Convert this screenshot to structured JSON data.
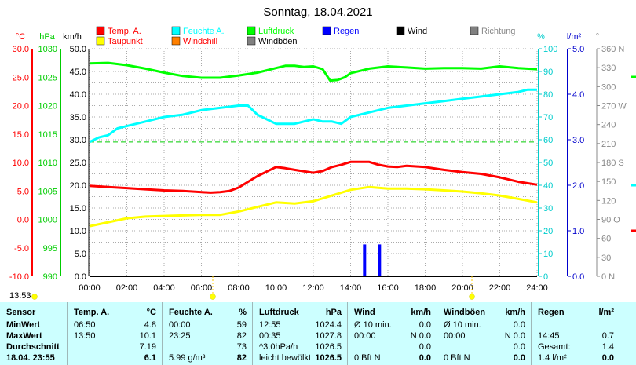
{
  "chart_data": {
    "type": "line",
    "title": "Sonntag, 18.04.2021",
    "x_ticks": [
      "00:00",
      "02:00",
      "04:00",
      "06:00",
      "08:00",
      "10:00",
      "12:00",
      "14:00",
      "16:00",
      "18:00",
      "20:00",
      "22:00",
      "24:00"
    ],
    "x_range_hours": [
      0,
      24
    ],
    "grid": true,
    "axes": {
      "temp": {
        "unit": "°C",
        "color": "#ff0000",
        "range": [
          -10,
          30
        ],
        "ticks": [
          "30.0",
          "25.0",
          "20.0",
          "15.0",
          "10.0",
          "5.0",
          "0.0",
          "-5.0",
          "-10.0"
        ]
      },
      "pressure": {
        "unit": "hPa",
        "color": "#00cc00",
        "range": [
          990,
          1030
        ],
        "ticks": [
          "1030",
          "1025",
          "1020",
          "1015",
          "1010",
          "1005",
          "1000",
          "995",
          "990"
        ]
      },
      "wind": {
        "unit": "km/h",
        "color": "#000000",
        "range": [
          0,
          50
        ],
        "ticks": [
          "50.0",
          "45.0",
          "40.0",
          "35.0",
          "30.0",
          "25.0",
          "20.0",
          "15.0",
          "10.0",
          "5.0",
          "0.0"
        ]
      },
      "humidity": {
        "unit": "%",
        "color": "#00cccc",
        "range": [
          0,
          100
        ],
        "ticks": [
          "100",
          "90",
          "80",
          "70",
          "60",
          "50",
          "40",
          "30",
          "20",
          "10",
          "0"
        ]
      },
      "rain": {
        "unit": "l/m²",
        "color": "#0000cc",
        "range": [
          0,
          5
        ],
        "ticks": [
          "5.0",
          "4.0",
          "3.0",
          "2.0",
          "1.0",
          "0.0"
        ]
      },
      "direction": {
        "unit": "°",
        "color": "#888888",
        "range": [
          0,
          360
        ],
        "ticks": [
          "360 N",
          "330",
          "300",
          "270 W",
          "240",
          "210",
          "180 S",
          "150",
          "120",
          "90 O",
          "60",
          "30",
          "0 N"
        ]
      }
    },
    "legend": [
      {
        "name": "Temp. A.",
        "color": "#ff0000"
      },
      {
        "name": "Feuchte A.",
        "color": "#00ffff"
      },
      {
        "name": "Luftdruck",
        "color": "#00ff00"
      },
      {
        "name": "Regen",
        "color": "#0000ff"
      },
      {
        "name": "Wind",
        "color": "#000000"
      },
      {
        "name": "Richtung",
        "color": "#808080"
      },
      {
        "name": "Taupunkt",
        "color": "#ffff00"
      },
      {
        "name": "Windchill",
        "color": "#ff8000"
      },
      {
        "name": "Windböen",
        "color": "#808080"
      }
    ],
    "series": [
      {
        "name": "Temp. A.",
        "color": "#ff0000",
        "axis": "temp",
        "x": [
          0,
          1,
          2,
          3,
          4,
          5,
          6,
          6.5,
          7,
          7.5,
          8,
          9,
          10,
          10.5,
          11,
          12,
          12.5,
          13,
          13.5,
          14,
          14.5,
          15,
          15.5,
          16,
          16.5,
          17,
          18,
          19,
          20,
          21,
          22,
          23,
          24
        ],
        "y": [
          5.9,
          5.7,
          5.5,
          5.3,
          5.1,
          5.0,
          4.8,
          4.7,
          4.8,
          5.0,
          5.6,
          7.6,
          9.2,
          9.0,
          8.7,
          8.2,
          8.5,
          9.2,
          9.6,
          10.1,
          10.1,
          10.1,
          9.6,
          9.3,
          9.2,
          9.4,
          9.2,
          8.7,
          8.3,
          8.0,
          7.4,
          6.6,
          6.1
        ]
      },
      {
        "name": "Taupunkt",
        "color": "#ffff00",
        "axis": "temp",
        "x": [
          0,
          1,
          2,
          3,
          4,
          5,
          6,
          7,
          8,
          9,
          10,
          11,
          12,
          13,
          14,
          15,
          16,
          17,
          18,
          19,
          20,
          21,
          22,
          23,
          24
        ],
        "y": [
          -1.2,
          -0.5,
          0.2,
          0.5,
          0.6,
          0.7,
          0.8,
          0.8,
          1.4,
          2.2,
          3.0,
          2.8,
          3.2,
          4.2,
          5.2,
          5.7,
          5.4,
          5.4,
          5.3,
          5.1,
          4.9,
          4.6,
          4.2,
          3.6,
          3.0
        ]
      },
      {
        "name": "Feuchte A.",
        "color": "#00ffff",
        "axis": "humidity",
        "x": [
          0,
          0.5,
          1,
          1.5,
          2,
          2.5,
          3,
          4,
          5,
          6,
          7,
          8,
          8.5,
          9,
          9.5,
          10,
          10.5,
          11,
          11.5,
          12,
          12.5,
          13,
          13.5,
          14,
          15,
          16,
          17,
          18,
          19,
          20,
          21,
          22,
          23,
          23.5,
          24
        ],
        "y": [
          59,
          61,
          62,
          65,
          66,
          67,
          68,
          70,
          71,
          73,
          74,
          75,
          75,
          71,
          69,
          67,
          67,
          67,
          68,
          69,
          68,
          68,
          67,
          70,
          72,
          74,
          75,
          76,
          77,
          78,
          79,
          80,
          81,
          82,
          82
        ]
      },
      {
        "name": "Luftdruck",
        "color": "#00ff00",
        "axis": "pressure",
        "x": [
          0,
          1,
          2,
          3,
          4,
          5,
          6,
          7,
          8,
          9,
          10,
          10.5,
          11,
          11.5,
          12,
          12.5,
          12.9,
          13.3,
          13.7,
          14,
          15,
          16,
          17,
          18,
          19,
          20,
          21,
          22,
          23,
          24
        ],
        "y": [
          1027.4,
          1027.5,
          1027.1,
          1026.5,
          1025.8,
          1025.2,
          1024.9,
          1024.9,
          1025.3,
          1025.8,
          1026.6,
          1027.0,
          1027.0,
          1026.8,
          1026.9,
          1026.4,
          1024.4,
          1024.5,
          1025.0,
          1025.7,
          1026.5,
          1026.9,
          1026.7,
          1026.5,
          1026.6,
          1026.6,
          1026.5,
          1026.9,
          1026.6,
          1026.4
        ]
      },
      {
        "name": "Regen",
        "color": "#0000ff",
        "axis": "rain",
        "type": "bar",
        "x": [
          14.75,
          15.55
        ],
        "y": [
          0.7,
          0.7
        ]
      },
      {
        "name": "Wind",
        "color": "#000000",
        "axis": "wind",
        "x": [
          0,
          24
        ],
        "y": [
          0,
          0
        ]
      }
    ],
    "reference_lines": [
      {
        "axis": "humidity",
        "value": 59,
        "color": "#00cc00",
        "style": "dashed"
      }
    ]
  },
  "time_marker": "13:53",
  "table": {
    "columns": [
      {
        "title": "Sensor",
        "unit": ""
      },
      {
        "title": "Temp. A.",
        "unit": "°C"
      },
      {
        "title": "Feuchte A.",
        "unit": "%"
      },
      {
        "title": "Luftdruck",
        "unit": "hPa"
      },
      {
        "title": "Wind",
        "unit": "km/h"
      },
      {
        "title": "Windböen",
        "unit": "km/h"
      },
      {
        "title": "Regen",
        "unit": "l/m²"
      }
    ],
    "rows": [
      {
        "label": "MinWert",
        "cells": [
          [
            "06:50",
            "4.8"
          ],
          [
            "00:00",
            "59"
          ],
          [
            "12:55",
            "1024.4"
          ],
          [
            "Ø 10 min.",
            "0.0"
          ],
          [
            "Ø 10 min.",
            "0.0"
          ],
          [
            "",
            ""
          ]
        ]
      },
      {
        "label": "MaxWert",
        "cells": [
          [
            "13:50",
            "10.1"
          ],
          [
            "23:25",
            "82"
          ],
          [
            "00:35",
            "1027.8"
          ],
          [
            "00:00",
            "N 0.0"
          ],
          [
            "00:00",
            "N 0.0"
          ],
          [
            "14:45",
            "0.7"
          ]
        ]
      },
      {
        "label": "Durchschnitt",
        "cells": [
          [
            "",
            "7.19"
          ],
          [
            "",
            "73"
          ],
          [
            "^3.0hPa/h",
            "1026.5"
          ],
          [
            "",
            "0.0"
          ],
          [
            "",
            "0.0"
          ],
          [
            "Gesamt:",
            "1.4"
          ]
        ]
      },
      {
        "label": "18.04. 23:55",
        "cells": [
          [
            "",
            "6.1"
          ],
          [
            "5.99 g/m³",
            "82"
          ],
          [
            "leicht bewölkt",
            "1026.5"
          ],
          [
            "0 Bft N",
            "0.0"
          ],
          [
            "0 Bft N",
            "0.0"
          ],
          [
            "1.4 l/m²",
            "0.0"
          ]
        ]
      }
    ]
  }
}
